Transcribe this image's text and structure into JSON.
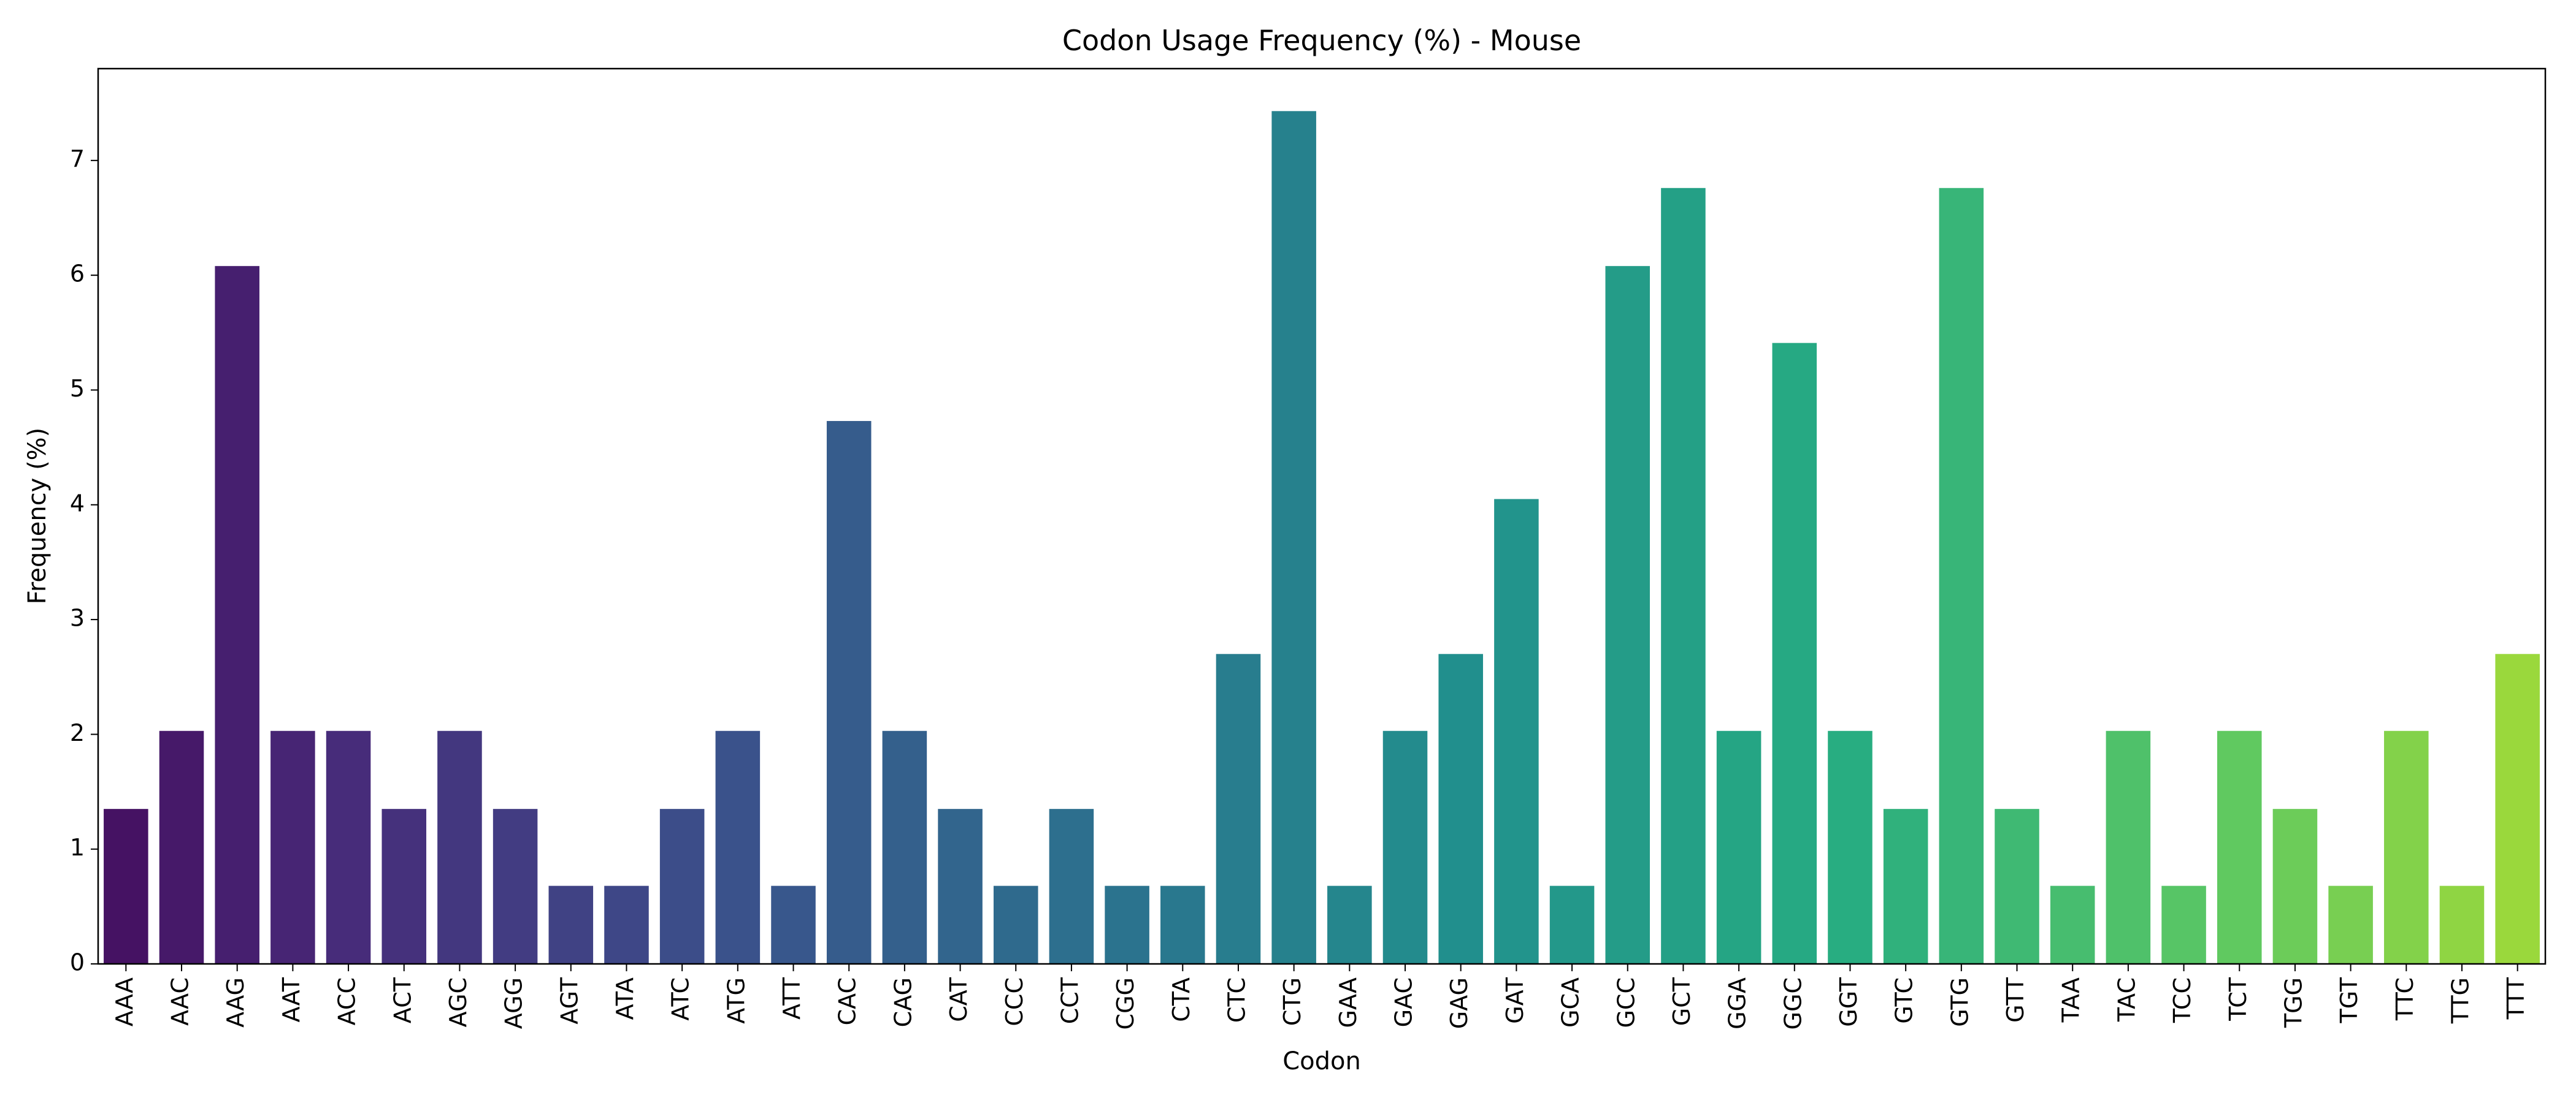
{
  "chart_data": {
    "type": "bar",
    "title": "Codon Usage Frequency (%) - Mouse",
    "xlabel": "Codon",
    "ylabel": "Frequency (%)",
    "ylim": [
      0,
      7.8
    ],
    "yticks": [
      0,
      1,
      2,
      3,
      4,
      5,
      6,
      7
    ],
    "grid": false,
    "legend": "none",
    "palette": "viridis",
    "categories": [
      "AAA",
      "AAC",
      "AAG",
      "AAT",
      "ACC",
      "ACT",
      "AGC",
      "AGG",
      "AGT",
      "ATA",
      "ATC",
      "ATG",
      "ATT",
      "CAC",
      "CAG",
      "CAT",
      "CCC",
      "CCT",
      "CGG",
      "CTA",
      "CTC",
      "CTG",
      "GAA",
      "GAC",
      "GAG",
      "GAT",
      "GCA",
      "GCC",
      "GCT",
      "GGA",
      "GGC",
      "GGT",
      "GTC",
      "GTG",
      "GTT",
      "TAA",
      "TAC",
      "TCC",
      "TCT",
      "TGG",
      "TGT",
      "TTC",
      "TTG",
      "TTT"
    ],
    "values": [
      1.35,
      2.03,
      6.08,
      2.03,
      2.03,
      1.35,
      2.03,
      1.35,
      0.68,
      0.68,
      1.35,
      2.03,
      0.68,
      4.73,
      2.03,
      1.35,
      0.68,
      1.35,
      0.68,
      0.68,
      2.7,
      7.43,
      0.68,
      2.03,
      2.7,
      4.05,
      0.68,
      6.08,
      6.76,
      2.03,
      5.41,
      2.03,
      1.35,
      6.76,
      1.35,
      0.68,
      2.03,
      0.68,
      2.03,
      1.35,
      0.68,
      2.03,
      0.68,
      2.7
    ]
  }
}
